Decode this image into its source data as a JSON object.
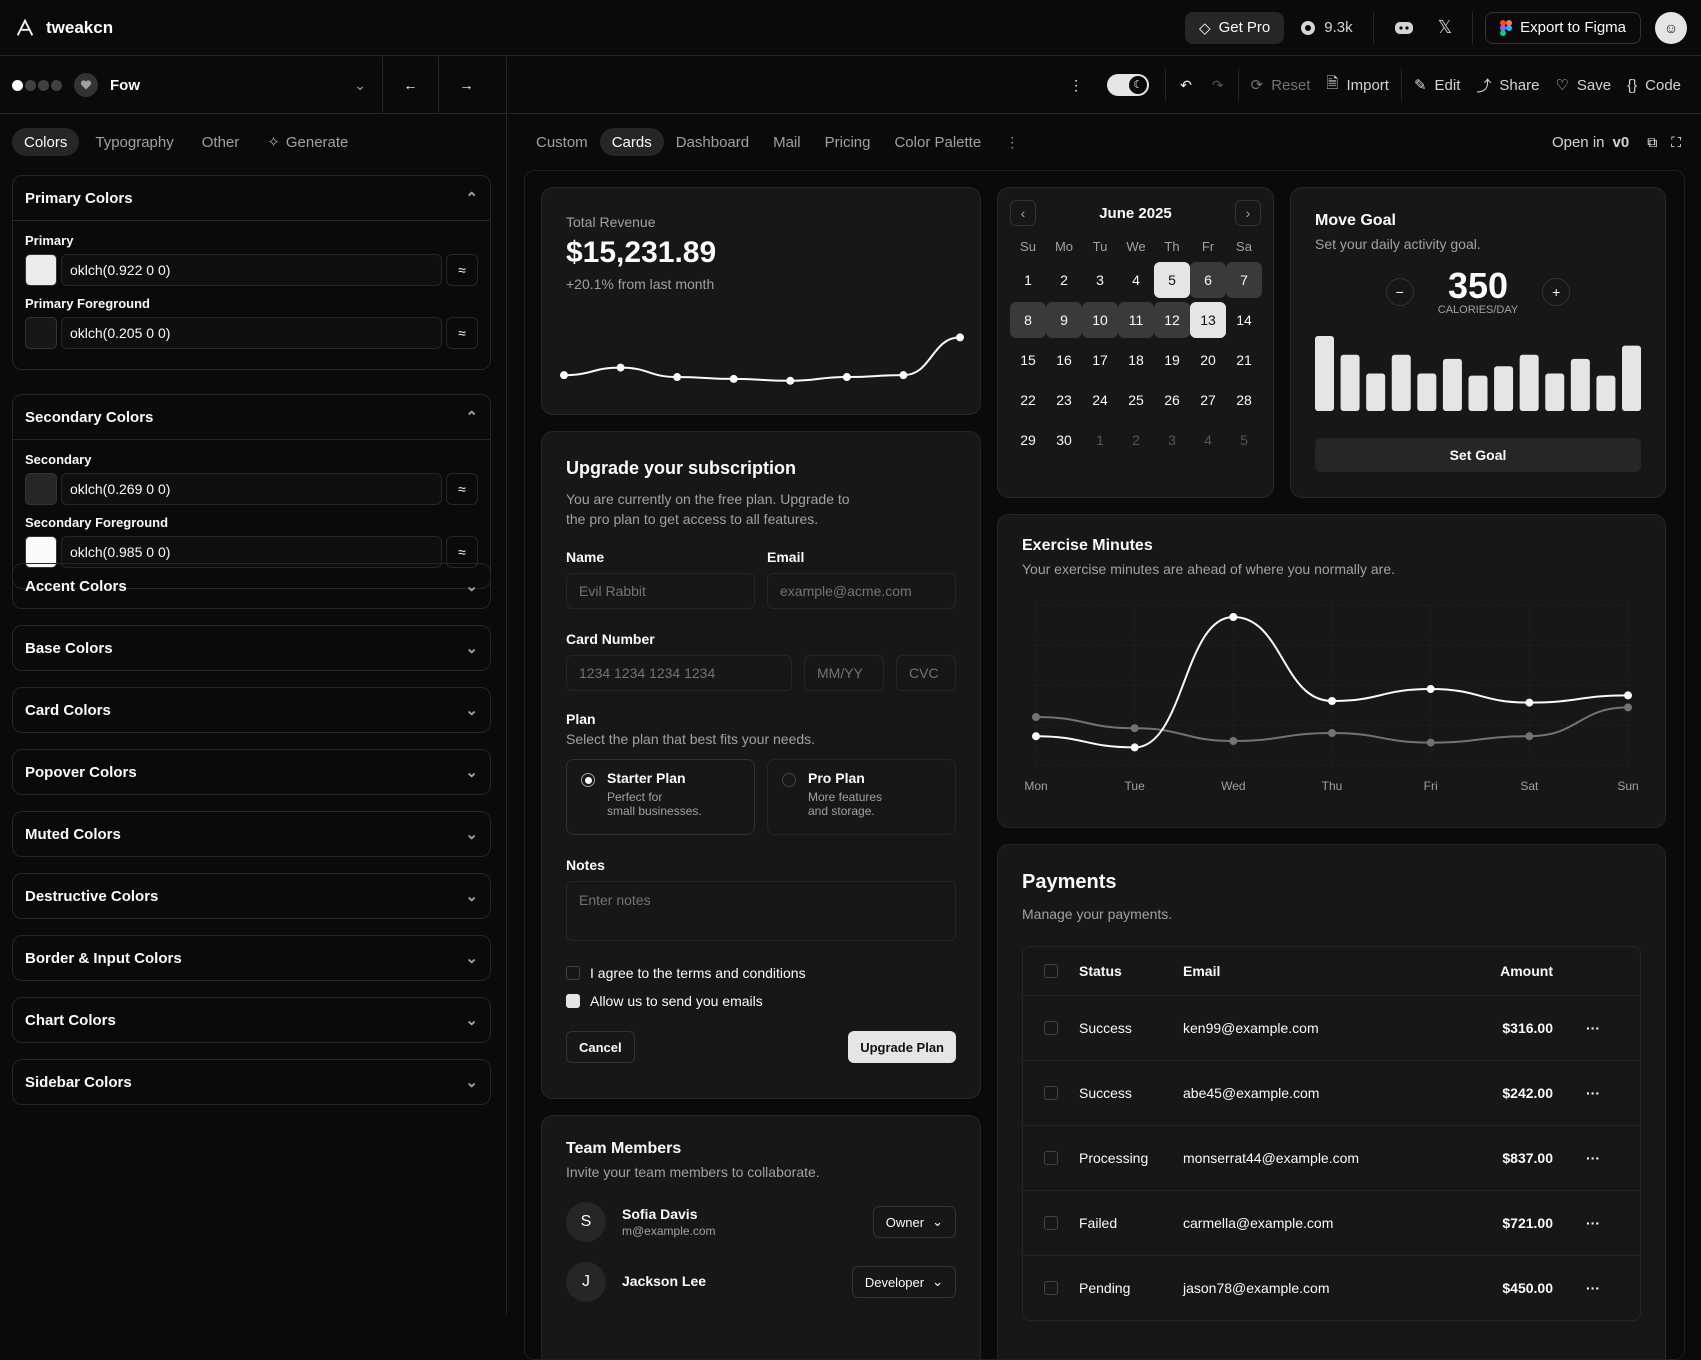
{
  "app": {
    "name": "tweakcn"
  },
  "topbar": {
    "get_pro": "Get Pro",
    "github_stars": "9.3k",
    "export": "Export to Figma"
  },
  "theme": {
    "name": "Fow"
  },
  "toolbar": {
    "reset": "Reset",
    "import": "Import",
    "edit": "Edit",
    "share": "Share",
    "save": "Save",
    "code": "Code"
  },
  "left_tabs": [
    "Colors",
    "Typography",
    "Other",
    "Generate"
  ],
  "primary": {
    "title": "Primary Colors",
    "primary_label": "Primary",
    "primary_value": "oklch(0.922 0 0)",
    "fg_label": "Primary Foreground",
    "fg_value": "oklch(0.205 0 0)",
    "swatch1": "#ebebeb",
    "swatch2": "#171717"
  },
  "secondary": {
    "title": "Secondary Colors",
    "secondary_label": "Secondary",
    "secondary_value": "oklch(0.269 0 0)",
    "fg_label": "Secondary Foreground",
    "fg_value": "oklch(0.985 0 0)",
    "swatch1": "#262626",
    "swatch2": "#fafafa"
  },
  "sections": [
    "Accent Colors",
    "Base Colors",
    "Card Colors",
    "Popover Colors",
    "Muted Colors",
    "Destructive Colors",
    "Border & Input Colors",
    "Chart Colors",
    "Sidebar Colors"
  ],
  "preview_tabs": [
    "Custom",
    "Cards",
    "Dashboard",
    "Mail",
    "Pricing",
    "Color Palette"
  ],
  "open_in": "Open in",
  "revenue": {
    "label": "Total Revenue",
    "value": "$15,231.89",
    "change": "+20.1% from last month"
  },
  "calendar": {
    "month": "June 2025",
    "weekdays": [
      "Su",
      "Mo",
      "Tu",
      "We",
      "Th",
      "Fr",
      "Sa"
    ],
    "weeks": [
      [
        "1",
        "2",
        "3",
        "4",
        "5",
        "6",
        "7"
      ],
      [
        "8",
        "9",
        "10",
        "11",
        "12",
        "13",
        "14"
      ],
      [
        "15",
        "16",
        "17",
        "18",
        "19",
        "20",
        "21"
      ],
      [
        "22",
        "23",
        "24",
        "25",
        "26",
        "27",
        "28"
      ],
      [
        "29",
        "30",
        "1",
        "2",
        "3",
        "4",
        "5"
      ]
    ]
  },
  "goal": {
    "title": "Move Goal",
    "subtitle": "Set your daily activity goal.",
    "value": "350",
    "unit": "CALORIES/DAY",
    "button": "Set Goal"
  },
  "subscription": {
    "title": "Upgrade your subscription",
    "subtitle": "You are currently on the free plan. Upgrade to the pro plan to get access to all features.",
    "name_label": "Name",
    "name_placeholder": "Evil Rabbit",
    "email_label": "Email",
    "email_placeholder": "example@acme.com",
    "card_label": "Card Number",
    "card_placeholder": "1234 1234 1234 1234",
    "exp_placeholder": "MM/YY",
    "cvc_placeholder": "CVC",
    "plan_label": "Plan",
    "plan_subtitle": "Select the plan that best fits your needs.",
    "starter": "Starter Plan",
    "starter_desc1": "Perfect for",
    "starter_desc2": "small businesses.",
    "pro": "Pro Plan",
    "pro_desc1": "More features",
    "pro_desc2": "and storage.",
    "notes_label": "Notes",
    "notes_placeholder": "Enter notes",
    "terms": "I agree to the terms and conditions",
    "emails": "Allow us to send you emails",
    "cancel": "Cancel",
    "upgrade": "Upgrade Plan"
  },
  "exercise": {
    "title": "Exercise Minutes",
    "subtitle": "Your exercise minutes are ahead of where you normally are."
  },
  "team": {
    "title": "Team Members",
    "subtitle": "Invite your team members to collaborate.",
    "members": [
      {
        "initial": "S",
        "name": "Sofia Davis",
        "email": "m@example.com",
        "role": "Owner"
      },
      {
        "initial": "J",
        "name": "Jackson Lee",
        "email": "",
        "role": "Developer"
      }
    ]
  },
  "payments": {
    "title": "Payments",
    "subtitle": "Manage your payments.",
    "headers": [
      "Status",
      "Email",
      "Amount"
    ],
    "rows": [
      {
        "status": "Success",
        "email": "ken99@example.com",
        "amount": "$316.00"
      },
      {
        "status": "Success",
        "email": "abe45@example.com",
        "amount": "$242.00"
      },
      {
        "status": "Processing",
        "email": "monserrat44@example.com",
        "amount": "$837.00"
      },
      {
        "status": "Failed",
        "email": "carmella@example.com",
        "amount": "$721.00"
      },
      {
        "status": "Pending",
        "email": "jason78@example.com",
        "amount": "$450.00"
      }
    ]
  },
  "chart_data": [
    {
      "type": "line",
      "title": "Total Revenue",
      "x": [
        1,
        2,
        3,
        4,
        5,
        6,
        7,
        8
      ],
      "series": [
        {
          "values": [
            10,
            14,
            9,
            8,
            7,
            9,
            10,
            30
          ]
        }
      ],
      "ylim": [
        0,
        35
      ]
    },
    {
      "type": "bar",
      "title": "Move Goal",
      "x": [
        1,
        2,
        3,
        4,
        5,
        6,
        7,
        8,
        9,
        10,
        11,
        12,
        13
      ],
      "series": [
        {
          "values": [
            400,
            300,
            200,
            300,
            200,
            278,
            189,
            239,
            300,
            200,
            278,
            189,
            349
          ]
        }
      ],
      "ylim": [
        0,
        400
      ]
    },
    {
      "type": "line",
      "title": "Exercise Minutes",
      "categories": [
        "Mon",
        "Tue",
        "Wed",
        "Thu",
        "Fri",
        "Sat",
        "Sun"
      ],
      "series": [
        {
          "values": [
            186,
            172,
            335,
            230,
            245,
            228,
            237
          ]
        },
        {
          "values": [
            210,
            196,
            180,
            190,
            178,
            186,
            222
          ]
        }
      ],
      "ylim": [
        150,
        350
      ]
    }
  ]
}
